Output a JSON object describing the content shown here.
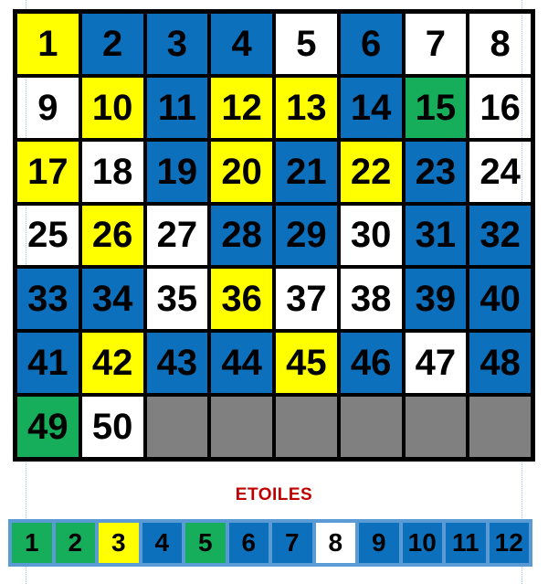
{
  "colors": {
    "blue": "#0C70BD",
    "yellow": "#FFFF00",
    "green": "#17AE5B",
    "gray": "#808080",
    "white": "#FFFFFF",
    "strip_background": "#5B9BD5",
    "label_red": "#C00000",
    "guide_line_blue": "#9DC3E6",
    "border_black": "#000000"
  },
  "numbers_grid": {
    "columns": 8,
    "cells": [
      {
        "label": "1",
        "color": "yellow"
      },
      {
        "label": "2",
        "color": "blue"
      },
      {
        "label": "3",
        "color": "blue"
      },
      {
        "label": "4",
        "color": "blue"
      },
      {
        "label": "5",
        "color": "white"
      },
      {
        "label": "6",
        "color": "blue"
      },
      {
        "label": "7",
        "color": "white"
      },
      {
        "label": "8",
        "color": "white"
      },
      {
        "label": "9",
        "color": "white"
      },
      {
        "label": "10",
        "color": "yellow"
      },
      {
        "label": "11",
        "color": "blue"
      },
      {
        "label": "12",
        "color": "yellow"
      },
      {
        "label": "13",
        "color": "yellow"
      },
      {
        "label": "14",
        "color": "blue"
      },
      {
        "label": "15",
        "color": "green"
      },
      {
        "label": "16",
        "color": "white"
      },
      {
        "label": "17",
        "color": "yellow"
      },
      {
        "label": "18",
        "color": "white"
      },
      {
        "label": "19",
        "color": "blue"
      },
      {
        "label": "20",
        "color": "yellow"
      },
      {
        "label": "21",
        "color": "blue"
      },
      {
        "label": "22",
        "color": "yellow"
      },
      {
        "label": "23",
        "color": "blue"
      },
      {
        "label": "24",
        "color": "white"
      },
      {
        "label": "25",
        "color": "white"
      },
      {
        "label": "26",
        "color": "yellow"
      },
      {
        "label": "27",
        "color": "white"
      },
      {
        "label": "28",
        "color": "blue"
      },
      {
        "label": "29",
        "color": "blue"
      },
      {
        "label": "30",
        "color": "white"
      },
      {
        "label": "31",
        "color": "blue"
      },
      {
        "label": "32",
        "color": "blue"
      },
      {
        "label": "33",
        "color": "blue"
      },
      {
        "label": "34",
        "color": "blue"
      },
      {
        "label": "35",
        "color": "white"
      },
      {
        "label": "36",
        "color": "yellow"
      },
      {
        "label": "37",
        "color": "white"
      },
      {
        "label": "38",
        "color": "white"
      },
      {
        "label": "39",
        "color": "blue"
      },
      {
        "label": "40",
        "color": "blue"
      },
      {
        "label": "41",
        "color": "blue"
      },
      {
        "label": "42",
        "color": "yellow"
      },
      {
        "label": "43",
        "color": "blue"
      },
      {
        "label": "44",
        "color": "blue"
      },
      {
        "label": "45",
        "color": "yellow"
      },
      {
        "label": "46",
        "color": "blue"
      },
      {
        "label": "47",
        "color": "white"
      },
      {
        "label": "48",
        "color": "blue"
      },
      {
        "label": "49",
        "color": "green"
      },
      {
        "label": "50",
        "color": "white"
      },
      {
        "label": "",
        "color": "gray"
      },
      {
        "label": "",
        "color": "gray"
      },
      {
        "label": "",
        "color": "gray"
      },
      {
        "label": "",
        "color": "gray"
      },
      {
        "label": "",
        "color": "gray"
      },
      {
        "label": "",
        "color": "gray"
      }
    ]
  },
  "etoiles": {
    "label": "ETOILES",
    "cells": [
      {
        "label": "1",
        "color": "green"
      },
      {
        "label": "2",
        "color": "green"
      },
      {
        "label": "3",
        "color": "yellow"
      },
      {
        "label": "4",
        "color": "blue"
      },
      {
        "label": "5",
        "color": "green"
      },
      {
        "label": "6",
        "color": "blue"
      },
      {
        "label": "7",
        "color": "blue"
      },
      {
        "label": "8",
        "color": "white"
      },
      {
        "label": "9",
        "color": "blue"
      },
      {
        "label": "10",
        "color": "blue"
      },
      {
        "label": "11",
        "color": "blue"
      },
      {
        "label": "12",
        "color": "blue"
      }
    ]
  }
}
